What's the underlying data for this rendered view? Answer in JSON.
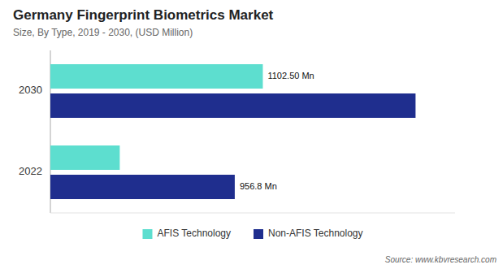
{
  "chart_data": {
    "type": "bar",
    "orientation": "horizontal",
    "title": "Germany Fingerprint Biometrics  Market",
    "subtitle": "Size, By Type, 2019 - 2030, (USD Million)",
    "categories": [
      "2030",
      "2022"
    ],
    "series": [
      {
        "name": "AFIS Technology",
        "color": "#5DDECF",
        "values": [
          1102.5,
          360.0
        ],
        "value_labels": [
          "1102.50 Mn",
          null
        ]
      },
      {
        "name": "Non-AFIS Technology",
        "color": "#1F2E8E",
        "values": [
          1895.0,
          956.8
        ],
        "value_labels": [
          null,
          "956.8 Mn"
        ]
      }
    ],
    "xlim": [
      0,
      2100
    ],
    "tick_labels": "y",
    "grid": false,
    "legend": "bottom",
    "source": "Source: www.kbvresearch.com"
  }
}
